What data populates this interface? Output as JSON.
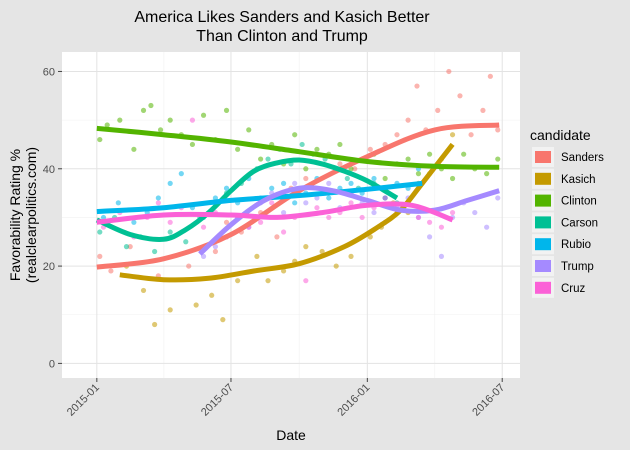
{
  "background": "#e5e5e5",
  "panel_background": "#ffffff",
  "chart_data": {
    "type": "scatter",
    "title": "America Likes Sanders and Kasich Better",
    "subtitle": "Than Clinton and Trump",
    "xlabel": "Date",
    "ylabel": "Favorability Rating %",
    "ylabel_sub": "(realclearpolitics.com)",
    "x_ticks": [
      "2015-01",
      "2015-07",
      "2016-01",
      "2016-07"
    ],
    "y_ticks": [
      0,
      20,
      40,
      60
    ],
    "xlim": [
      "2014-11-15",
      "2016-07-25"
    ],
    "ylim": [
      -3,
      64
    ],
    "grid": true,
    "legend_title": "candidate",
    "legend_position": "right",
    "series": [
      {
        "name": "Sanders",
        "color": "#f8766d",
        "smooth": [
          [
            "2015-01-01",
            19.8
          ],
          [
            "2015-04-01",
            21.5
          ],
          [
            "2015-07-01",
            26.5
          ],
          [
            "2015-10-01",
            35.5
          ],
          [
            "2016-01-01",
            42.5
          ],
          [
            "2016-04-01",
            48
          ],
          [
            "2016-06-27",
            49
          ]
        ],
        "points": [
          [
            "2015-01-05",
            22
          ],
          [
            "2015-01-20",
            19
          ],
          [
            "2015-02-15",
            24
          ],
          [
            "2015-03-25",
            18
          ],
          [
            "2015-05-05",
            20
          ],
          [
            "2015-06-10",
            23
          ],
          [
            "2015-06-25",
            29
          ],
          [
            "2015-07-15",
            27
          ],
          [
            "2015-08-10",
            31
          ],
          [
            "2015-09-01",
            26
          ],
          [
            "2015-09-20",
            36
          ],
          [
            "2015-10-10",
            38
          ],
          [
            "2015-11-01",
            35
          ],
          [
            "2015-11-25",
            41
          ],
          [
            "2015-12-15",
            40
          ],
          [
            "2016-01-05",
            44
          ],
          [
            "2016-01-25",
            45
          ],
          [
            "2016-02-10",
            47
          ],
          [
            "2016-02-25",
            50
          ],
          [
            "2016-03-08",
            57
          ],
          [
            "2016-03-20",
            48
          ],
          [
            "2016-04-05",
            52
          ],
          [
            "2016-04-20",
            60
          ],
          [
            "2016-05-05",
            55
          ],
          [
            "2016-05-20",
            47
          ],
          [
            "2016-06-05",
            52
          ],
          [
            "2016-06-15",
            59
          ],
          [
            "2016-06-25",
            48
          ]
        ]
      },
      {
        "name": "Kasich",
        "color": "#c49a00",
        "smooth": [
          [
            "2015-02-01",
            18.2
          ],
          [
            "2015-04-01",
            17.2
          ],
          [
            "2015-06-01",
            17.5
          ],
          [
            "2015-08-01",
            19
          ],
          [
            "2015-10-01",
            20.5
          ],
          [
            "2015-12-01",
            24
          ],
          [
            "2016-01-15",
            28
          ],
          [
            "2016-02-15",
            31.5
          ],
          [
            "2016-03-15",
            37
          ],
          [
            "2016-04-25",
            45
          ]
        ],
        "points": [
          [
            "2015-02-10",
            20
          ],
          [
            "2015-03-05",
            15
          ],
          [
            "2015-03-20",
            8
          ],
          [
            "2015-04-10",
            11
          ],
          [
            "2015-05-15",
            12
          ],
          [
            "2015-06-05",
            14
          ],
          [
            "2015-06-20",
            9
          ],
          [
            "2015-07-10",
            17
          ],
          [
            "2015-08-05",
            22
          ],
          [
            "2015-08-20",
            17
          ],
          [
            "2015-09-10",
            19
          ],
          [
            "2015-09-25",
            21
          ],
          [
            "2015-10-10",
            24
          ],
          [
            "2015-11-01",
            23
          ],
          [
            "2015-11-20",
            20
          ],
          [
            "2015-12-10",
            22
          ],
          [
            "2016-01-05",
            26
          ],
          [
            "2016-01-20",
            28
          ],
          [
            "2016-02-05",
            33
          ],
          [
            "2016-02-25",
            31
          ],
          [
            "2016-03-10",
            37
          ],
          [
            "2016-03-25",
            39
          ],
          [
            "2016-04-10",
            42
          ],
          [
            "2016-04-25",
            47
          ]
        ]
      },
      {
        "name": "Clinton",
        "color": "#53b400",
        "smooth": [
          [
            "2015-01-01",
            48.3
          ],
          [
            "2015-04-01",
            47
          ],
          [
            "2015-07-01",
            45.5
          ],
          [
            "2015-10-01",
            43.5
          ],
          [
            "2016-01-01",
            41.5
          ],
          [
            "2016-04-01",
            40.5
          ],
          [
            "2016-06-27",
            40.3
          ]
        ],
        "points": [
          [
            "2015-01-05",
            46
          ],
          [
            "2015-01-15",
            49
          ],
          [
            "2015-02-01",
            50
          ],
          [
            "2015-02-20",
            44
          ],
          [
            "2015-03-05",
            52
          ],
          [
            "2015-03-15",
            53
          ],
          [
            "2015-03-28",
            48
          ],
          [
            "2015-04-10",
            50
          ],
          [
            "2015-04-25",
            47
          ],
          [
            "2015-05-10",
            45
          ],
          [
            "2015-05-25",
            51
          ],
          [
            "2015-06-10",
            46
          ],
          [
            "2015-06-25",
            52
          ],
          [
            "2015-07-10",
            44
          ],
          [
            "2015-07-25",
            48
          ],
          [
            "2015-08-10",
            42
          ],
          [
            "2015-08-25",
            45
          ],
          [
            "2015-09-10",
            41
          ],
          [
            "2015-09-25",
            47
          ],
          [
            "2015-10-10",
            40
          ],
          [
            "2015-10-25",
            44
          ],
          [
            "2015-11-10",
            43
          ],
          [
            "2015-11-25",
            45
          ],
          [
            "2015-12-10",
            40
          ],
          [
            "2015-12-25",
            42
          ],
          [
            "2016-01-10",
            43
          ],
          [
            "2016-01-25",
            38
          ],
          [
            "2016-02-10",
            41
          ],
          [
            "2016-02-25",
            42
          ],
          [
            "2016-03-10",
            39
          ],
          [
            "2016-03-25",
            43
          ],
          [
            "2016-04-10",
            40
          ],
          [
            "2016-04-25",
            38
          ],
          [
            "2016-05-10",
            43
          ],
          [
            "2016-05-25",
            40
          ],
          [
            "2016-06-10",
            39
          ],
          [
            "2016-06-25",
            42
          ]
        ]
      },
      {
        "name": "Carson",
        "color": "#00c094",
        "smooth": [
          [
            "2015-01-01",
            29.5
          ],
          [
            "2015-02-15",
            26.5
          ],
          [
            "2015-04-01",
            25.5
          ],
          [
            "2015-05-01",
            27.5
          ],
          [
            "2015-06-01",
            31
          ],
          [
            "2015-07-01",
            35.5
          ],
          [
            "2015-08-01",
            39.5
          ],
          [
            "2015-09-01",
            41.2
          ],
          [
            "2015-10-01",
            41.8
          ],
          [
            "2015-11-01",
            41
          ],
          [
            "2015-12-01",
            39.5
          ],
          [
            "2016-01-01",
            37.5
          ],
          [
            "2016-02-10",
            34
          ]
        ],
        "points": [
          [
            "2015-01-05",
            27
          ],
          [
            "2015-01-25",
            30
          ],
          [
            "2015-02-10",
            24
          ],
          [
            "2015-03-01",
            26
          ],
          [
            "2015-03-20",
            23
          ],
          [
            "2015-04-10",
            27
          ],
          [
            "2015-05-01",
            25
          ],
          [
            "2015-05-20",
            30
          ],
          [
            "2015-06-10",
            33
          ],
          [
            "2015-06-25",
            35
          ],
          [
            "2015-07-15",
            37
          ],
          [
            "2015-08-05",
            40
          ],
          [
            "2015-08-20",
            42
          ],
          [
            "2015-09-05",
            44
          ],
          [
            "2015-09-20",
            41
          ],
          [
            "2015-10-05",
            45
          ],
          [
            "2015-10-20",
            43
          ],
          [
            "2015-11-05",
            42
          ],
          [
            "2015-11-20",
            40
          ],
          [
            "2015-12-05",
            38
          ],
          [
            "2015-12-20",
            36
          ],
          [
            "2016-01-10",
            37
          ],
          [
            "2016-01-25",
            34
          ],
          [
            "2016-02-10",
            33
          ]
        ]
      },
      {
        "name": "Rubio",
        "color": "#00b6eb",
        "smooth": [
          [
            "2015-01-01",
            31.2
          ],
          [
            "2015-04-01",
            32
          ],
          [
            "2015-07-01",
            33.5
          ],
          [
            "2015-10-01",
            34.5
          ],
          [
            "2016-01-01",
            35.8
          ],
          [
            "2016-03-15",
            37
          ]
        ],
        "points": [
          [
            "2015-01-10",
            30
          ],
          [
            "2015-01-30",
            33
          ],
          [
            "2015-02-20",
            29
          ],
          [
            "2015-03-10",
            31
          ],
          [
            "2015-03-25",
            34
          ],
          [
            "2015-04-10",
            37
          ],
          [
            "2015-04-25",
            39
          ],
          [
            "2015-05-10",
            32
          ],
          [
            "2015-05-25",
            30
          ],
          [
            "2015-06-10",
            34
          ],
          [
            "2015-06-25",
            36
          ],
          [
            "2015-07-10",
            33
          ],
          [
            "2015-07-25",
            38
          ],
          [
            "2015-08-10",
            34
          ],
          [
            "2015-08-25",
            36
          ],
          [
            "2015-09-10",
            37
          ],
          [
            "2015-09-25",
            33
          ],
          [
            "2015-10-10",
            35
          ],
          [
            "2015-10-25",
            38
          ],
          [
            "2015-11-10",
            34
          ],
          [
            "2015-11-25",
            36
          ],
          [
            "2015-12-10",
            37
          ],
          [
            "2015-12-25",
            35
          ],
          [
            "2016-01-10",
            38
          ],
          [
            "2016-01-25",
            34
          ],
          [
            "2016-02-10",
            37
          ],
          [
            "2016-02-25",
            36
          ],
          [
            "2016-03-10",
            40
          ]
        ]
      },
      {
        "name": "Trump",
        "color": "#a58aff",
        "smooth": [
          [
            "2015-05-20",
            22.5
          ],
          [
            "2015-07-01",
            28.5
          ],
          [
            "2015-08-15",
            33.5
          ],
          [
            "2015-10-01",
            36
          ],
          [
            "2015-11-15",
            35.5
          ],
          [
            "2016-01-01",
            33.5
          ],
          [
            "2016-02-15",
            31.5
          ],
          [
            "2016-04-01",
            31.5
          ],
          [
            "2016-05-15",
            33.5
          ],
          [
            "2016-06-27",
            35.5
          ]
        ],
        "points": [
          [
            "2015-05-25",
            22
          ],
          [
            "2015-06-10",
            24
          ],
          [
            "2015-06-25",
            26
          ],
          [
            "2015-07-10",
            30
          ],
          [
            "2015-07-25",
            28
          ],
          [
            "2015-08-10",
            33
          ],
          [
            "2015-08-25",
            35
          ],
          [
            "2015-09-10",
            31
          ],
          [
            "2015-09-25",
            37
          ],
          [
            "2015-10-10",
            33
          ],
          [
            "2015-10-25",
            34
          ],
          [
            "2015-11-10",
            37
          ],
          [
            "2015-11-25",
            32
          ],
          [
            "2015-12-10",
            35
          ],
          [
            "2015-12-25",
            33
          ],
          [
            "2016-01-10",
            31
          ],
          [
            "2016-01-25",
            29
          ],
          [
            "2016-02-10",
            32
          ],
          [
            "2016-02-25",
            34
          ],
          [
            "2016-03-10",
            30
          ],
          [
            "2016-03-25",
            26
          ],
          [
            "2016-04-10",
            22
          ],
          [
            "2016-04-25",
            30
          ],
          [
            "2016-05-10",
            33
          ],
          [
            "2016-05-25",
            31
          ],
          [
            "2016-06-10",
            28
          ],
          [
            "2016-06-25",
            34
          ]
        ]
      },
      {
        "name": "Cruz",
        "color": "#fb61d7",
        "smooth": [
          [
            "2015-01-01",
            29
          ],
          [
            "2015-04-01",
            30.5
          ],
          [
            "2015-07-01",
            30.5
          ],
          [
            "2015-09-01",
            30
          ],
          [
            "2015-11-01",
            31
          ],
          [
            "2016-01-01",
            32.5
          ],
          [
            "2016-03-01",
            32.5
          ],
          [
            "2016-04-25",
            29.5
          ]
        ],
        "points": [
          [
            "2015-01-10",
            28
          ],
          [
            "2015-02-01",
            31
          ],
          [
            "2015-02-20",
            26
          ],
          [
            "2015-03-10",
            30
          ],
          [
            "2015-03-25",
            33
          ],
          [
            "2015-04-10",
            29
          ],
          [
            "2015-04-25",
            32
          ],
          [
            "2015-05-10",
            50
          ],
          [
            "2015-05-25",
            28
          ],
          [
            "2015-06-10",
            31
          ],
          [
            "2015-06-25",
            26
          ],
          [
            "2015-07-10",
            30
          ],
          [
            "2015-07-25",
            28
          ],
          [
            "2015-08-10",
            29
          ],
          [
            "2015-08-25",
            33
          ],
          [
            "2015-09-10",
            27
          ],
          [
            "2015-09-25",
            30
          ],
          [
            "2015-10-10",
            17
          ],
          [
            "2015-10-25",
            32
          ],
          [
            "2015-11-10",
            30
          ],
          [
            "2015-11-25",
            31
          ],
          [
            "2015-12-10",
            33
          ],
          [
            "2015-12-25",
            30
          ],
          [
            "2016-01-10",
            32
          ],
          [
            "2016-01-25",
            34
          ],
          [
            "2016-02-10",
            31
          ],
          [
            "2016-02-25",
            33
          ],
          [
            "2016-03-10",
            30
          ],
          [
            "2016-03-25",
            29
          ],
          [
            "2016-04-10",
            28
          ],
          [
            "2016-04-25",
            31
          ]
        ]
      }
    ]
  }
}
